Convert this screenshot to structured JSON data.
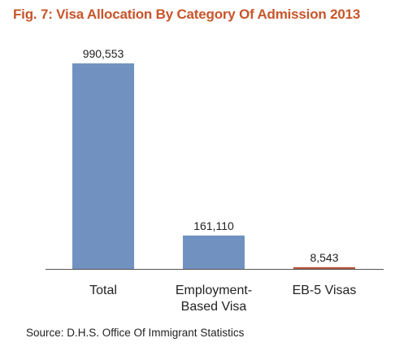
{
  "title": "Fig. 7: Visa Allocation By Category Of Admission 2013",
  "source": "Source: D.H.S. Office Of Immigrant Statistics",
  "colors": {
    "title": "#c8552a",
    "bar": "#7192c0",
    "eb5_bar": "#b6543b",
    "axis": "#555555"
  },
  "chart_data": {
    "type": "bar",
    "title": "Fig. 7: Visa Allocation By Category Of Admission 2013",
    "xlabel": "",
    "ylabel": "",
    "categories": [
      [
        "Total"
      ],
      [
        "Employment-",
        "Based Visa"
      ],
      [
        "EB-5 Visas"
      ]
    ],
    "values": [
      990553,
      161110,
      8543
    ],
    "value_labels": [
      "990,553",
      "161,110",
      "8,543"
    ],
    "ylim": [
      0,
      990553
    ],
    "grid": false,
    "legend": "none"
  }
}
